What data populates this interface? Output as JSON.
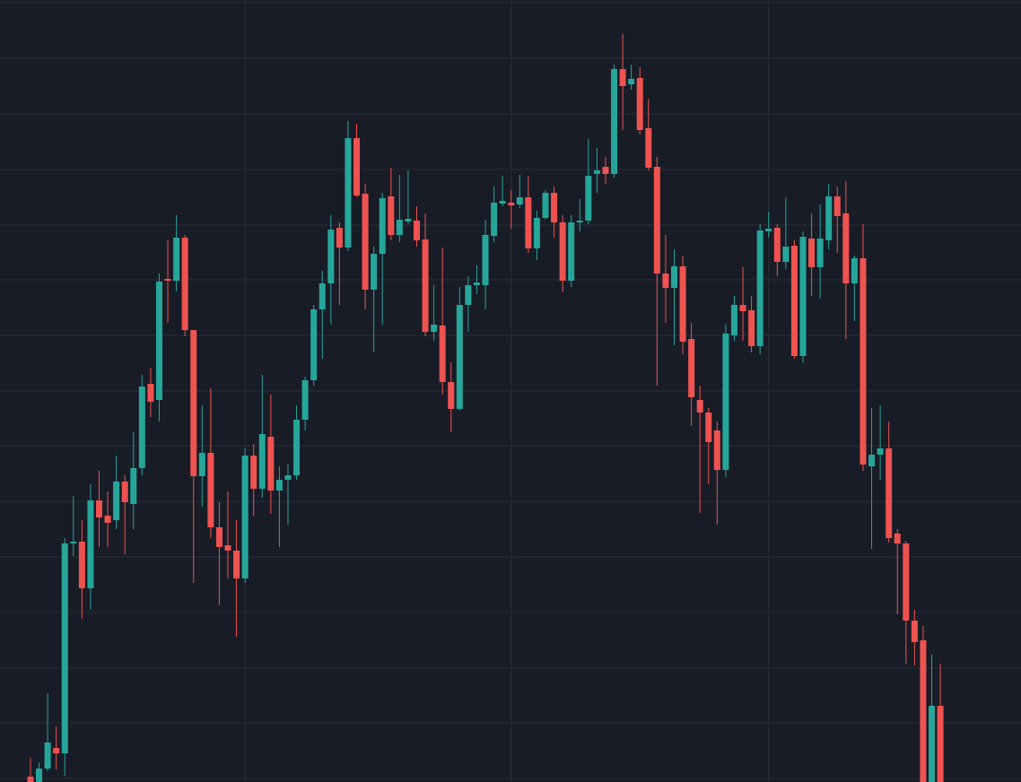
{
  "chart_data": {
    "type": "candlestick",
    "up_color": "#26a69a",
    "down_color": "#ef5350",
    "background": "#181c27",
    "grid_color": "#2a2e39",
    "grid": true,
    "xlim": [
      -3.55,
      115.4
    ],
    "xticks": [
      25,
      56,
      86
    ],
    "ylim": [
      0,
      872
    ],
    "yticks": [
      4,
      66,
      127,
      189,
      251,
      313,
      375,
      436,
      498,
      560,
      621,
      683,
      745,
      807,
      869
    ],
    "x": [
      0,
      1,
      2,
      3,
      4,
      5,
      6,
      7,
      8,
      9,
      10,
      11,
      12,
      13,
      14,
      15,
      16,
      17,
      18,
      19,
      20,
      21,
      22,
      23,
      24,
      25,
      26,
      27,
      28,
      29,
      30,
      31,
      32,
      33,
      34,
      35,
      36,
      37,
      38,
      39,
      40,
      41,
      42,
      43,
      44,
      45,
      46,
      47,
      48,
      49,
      50,
      51,
      52,
      53,
      54,
      55,
      56,
      57,
      58,
      59,
      60,
      61,
      62,
      63,
      64,
      65,
      66,
      67,
      68,
      69,
      70,
      71,
      72,
      73,
      74,
      75,
      76,
      77,
      78,
      79,
      80,
      81,
      82,
      83,
      84,
      85,
      86,
      87,
      88,
      89,
      90,
      91,
      92,
      93,
      94,
      95,
      96,
      97,
      98,
      99,
      100,
      101,
      102,
      103,
      104,
      105,
      106
    ],
    "open": [
      6,
      0,
      15,
      38,
      32,
      266,
      268,
      216,
      314,
      297,
      292,
      335,
      310,
      350,
      444,
      426,
      561,
      559,
      607,
      504,
      341,
      367,
      284,
      264,
      258,
      227,
      364,
      327,
      385,
      325,
      337,
      342,
      404,
      448,
      527,
      556,
      618,
      596,
      718,
      656,
      549,
      589,
      653,
      610,
      625,
      626,
      605,
      502,
      509,
      446,
      416,
      532,
      554,
      554,
      609,
      645,
      646,
      644,
      652,
      595,
      629,
      657,
      624,
      559,
      624,
      626,
      678,
      686,
      678,
      795,
      778,
      785,
      729,
      686,
      567,
      551,
      575,
      494,
      426,
      412,
      392,
      348,
      498,
      532,
      526,
      486,
      614,
      618,
      580,
      598,
      475,
      606,
      574,
      604,
      653,
      634,
      556,
      584,
      352,
      365,
      372,
      277,
      266,
      180,
      158,
      0,
      85
    ],
    "high": [
      27,
      22,
      99,
      62,
      272,
      319,
      292,
      332,
      347,
      324,
      364,
      342,
      390,
      454,
      462,
      567,
      604,
      632,
      610,
      504,
      420,
      439,
      312,
      324,
      292,
      372,
      377,
      454,
      432,
      352,
      354,
      420,
      452,
      532,
      570,
      632,
      624,
      737,
      734,
      667,
      597,
      657,
      685,
      677,
      682,
      642,
      634,
      554,
      596,
      468,
      552,
      564,
      576,
      627,
      664,
      676,
      660,
      677,
      676,
      637,
      660,
      664,
      632,
      632,
      650,
      717,
      707,
      697,
      800,
      834,
      800,
      797,
      762,
      697,
      610,
      594,
      587,
      512,
      442,
      417,
      402,
      510,
      542,
      574,
      542,
      622,
      636,
      622,
      652,
      604,
      614,
      634,
      644,
      667,
      664,
      670,
      587,
      622,
      417,
      420,
      402,
      282,
      269,
      192,
      174,
      142,
      132
    ],
    "low": [
      0,
      0,
      12,
      14,
      7,
      252,
      182,
      192,
      262,
      262,
      282,
      254,
      282,
      342,
      407,
      402,
      512,
      547,
      497,
      222,
      307,
      272,
      197,
      227,
      162,
      222,
      297,
      317,
      299,
      262,
      287,
      337,
      392,
      442,
      472,
      510,
      532,
      592,
      652,
      527,
      479,
      510,
      604,
      602,
      622,
      597,
      497,
      492,
      432,
      390,
      414,
      502,
      544,
      527,
      602,
      642,
      617,
      640,
      590,
      582,
      627,
      607,
      546,
      552,
      614,
      622,
      657,
      667,
      674,
      727,
      772,
      722,
      682,
      442,
      512,
      487,
      477,
      397,
      300,
      332,
      287,
      340,
      492,
      492,
      479,
      477,
      607,
      564,
      572,
      472,
      467,
      542,
      539,
      594,
      590,
      494,
      514,
      347,
      260,
      337,
      267,
      187,
      132,
      130,
      0,
      0,
      0
    ],
    "close": [
      0,
      15,
      44,
      32,
      266,
      268,
      216,
      314,
      295,
      289,
      335,
      312,
      350,
      441,
      424,
      558,
      559,
      607,
      504,
      341,
      367,
      284,
      262,
      258,
      227,
      364,
      327,
      388,
      325,
      337,
      342,
      404,
      448,
      527,
      556,
      616,
      596,
      718,
      654,
      549,
      589,
      651,
      610,
      627,
      628,
      604,
      502,
      510,
      446,
      416,
      532,
      554,
      557,
      610,
      646,
      648,
      643,
      652,
      595,
      629,
      657,
      624,
      559,
      624,
      626,
      676,
      682,
      678,
      795,
      776,
      784,
      727,
      685,
      567,
      551,
      575,
      491,
      429,
      412,
      379,
      348,
      500,
      532,
      525,
      486,
      615,
      617,
      580,
      597,
      475,
      608,
      574,
      606,
      653,
      631,
      556,
      584,
      354,
      365,
      372,
      272,
      266,
      180,
      156,
      0,
      85,
      0
    ]
  }
}
